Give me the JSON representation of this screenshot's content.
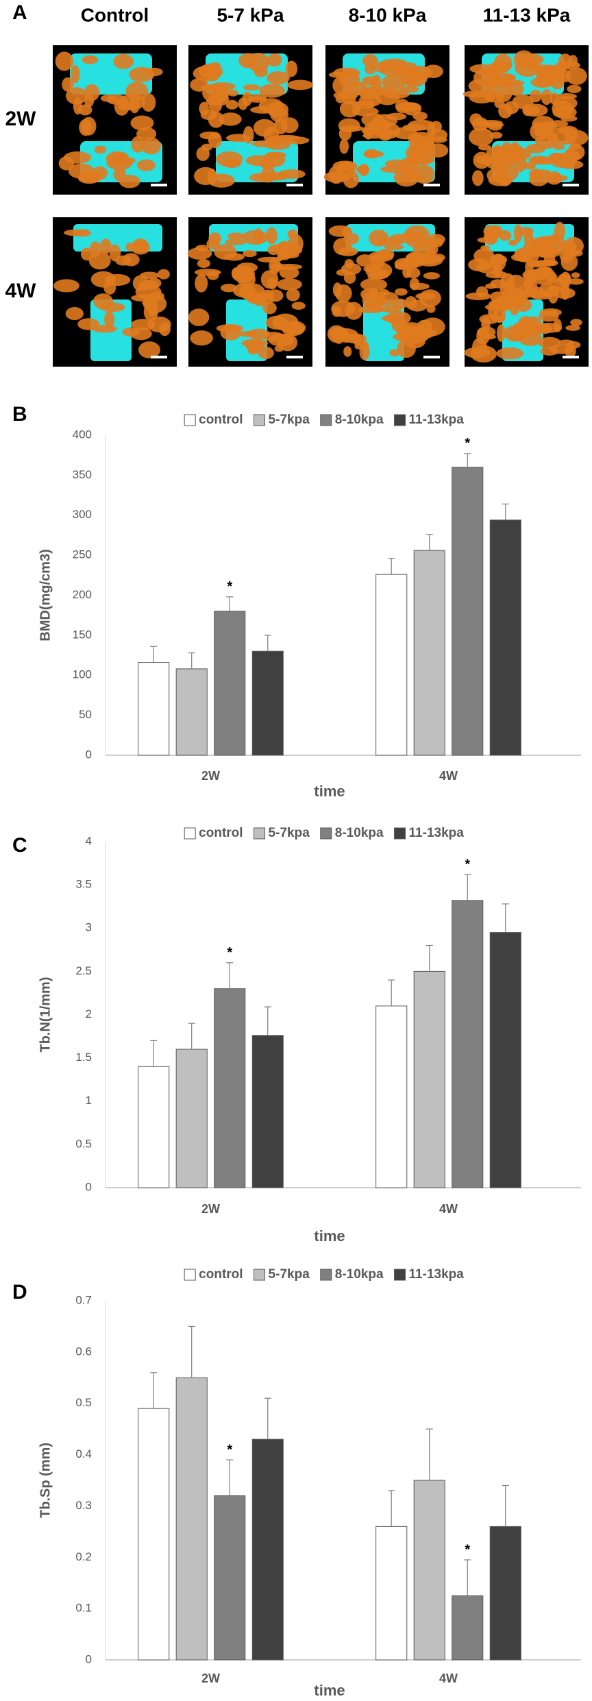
{
  "panel_a": {
    "label": "A",
    "columns": [
      "Control",
      "5-7 kPa",
      "8-10 kPa",
      "11-13 kPa"
    ],
    "rows": [
      "2W",
      "4W"
    ]
  },
  "chart_data": [
    {
      "type": "bar",
      "panel": "B",
      "ylabel": "BMD(mg/cm3)",
      "xlabel": "time",
      "categories": [
        "2W",
        "4W"
      ],
      "series": [
        {
          "name": "control",
          "color": "#ffffff",
          "values": [
            116,
            226
          ],
          "errors": [
            20,
            20
          ],
          "significance": [
            null,
            null
          ]
        },
        {
          "name": "5-7kpa",
          "color": "#bfbfbf",
          "values": [
            108,
            256
          ],
          "errors": [
            20,
            20
          ],
          "significance": [
            null,
            null
          ]
        },
        {
          "name": "8-10kpa",
          "color": "#808080",
          "values": [
            180,
            360
          ],
          "errors": [
            18,
            17
          ],
          "significance": [
            "*",
            "*"
          ]
        },
        {
          "name": "11-13kpa",
          "color": "#404040",
          "values": [
            130,
            294
          ],
          "errors": [
            20,
            20
          ],
          "significance": [
            null,
            null
          ]
        }
      ],
      "ylim": [
        0,
        400
      ],
      "yticks": [
        0,
        50,
        100,
        150,
        200,
        250,
        300,
        350,
        400
      ],
      "grid": false,
      "legend": "top"
    },
    {
      "type": "bar",
      "panel": "C",
      "ylabel": "Tb.N(1/mm)",
      "xlabel": "time",
      "categories": [
        "2W",
        "4W"
      ],
      "series": [
        {
          "name": "control",
          "color": "#ffffff",
          "values": [
            1.4,
            2.1
          ],
          "errors": [
            0.3,
            0.3
          ],
          "significance": [
            null,
            null
          ]
        },
        {
          "name": "5-7kpa",
          "color": "#bfbfbf",
          "values": [
            1.6,
            2.5
          ],
          "errors": [
            0.3,
            0.3
          ],
          "significance": [
            null,
            null
          ]
        },
        {
          "name": "8-10kpa",
          "color": "#808080",
          "values": [
            2.3,
            3.32
          ],
          "errors": [
            0.3,
            0.3
          ],
          "significance": [
            "*",
            "*"
          ]
        },
        {
          "name": "11-13kpa",
          "color": "#404040",
          "values": [
            1.76,
            2.95
          ],
          "errors": [
            0.33,
            0.33
          ],
          "significance": [
            null,
            null
          ]
        }
      ],
      "ylim": [
        0,
        4
      ],
      "yticks": [
        0,
        0.5,
        1,
        1.5,
        2,
        2.5,
        3,
        3.5,
        4
      ],
      "grid": false,
      "legend": "top"
    },
    {
      "type": "bar",
      "panel": "D",
      "ylabel": "Tb.Sp (mm)",
      "xlabel": "time",
      "categories": [
        "2W",
        "4W"
      ],
      "series": [
        {
          "name": "control",
          "color": "#ffffff",
          "values": [
            0.49,
            0.26
          ],
          "errors": [
            0.07,
            0.07
          ],
          "significance": [
            null,
            null
          ]
        },
        {
          "name": "5-7kpa",
          "color": "#bfbfbf",
          "values": [
            0.55,
            0.35
          ],
          "errors": [
            0.1,
            0.1
          ],
          "significance": [
            null,
            null
          ]
        },
        {
          "name": "8-10kpa",
          "color": "#808080",
          "values": [
            0.32,
            0.125
          ],
          "errors": [
            0.07,
            0.07
          ],
          "significance": [
            "*",
            "*"
          ]
        },
        {
          "name": "11-13kpa",
          "color": "#404040",
          "values": [
            0.43,
            0.26
          ],
          "errors": [
            0.08,
            0.08
          ],
          "significance": [
            null,
            null
          ]
        }
      ],
      "ylim": [
        0,
        0.7
      ],
      "yticks": [
        0,
        0.1,
        0.2,
        0.3,
        0.4,
        0.5,
        0.6,
        0.7
      ],
      "grid": false,
      "legend": "top"
    }
  ]
}
